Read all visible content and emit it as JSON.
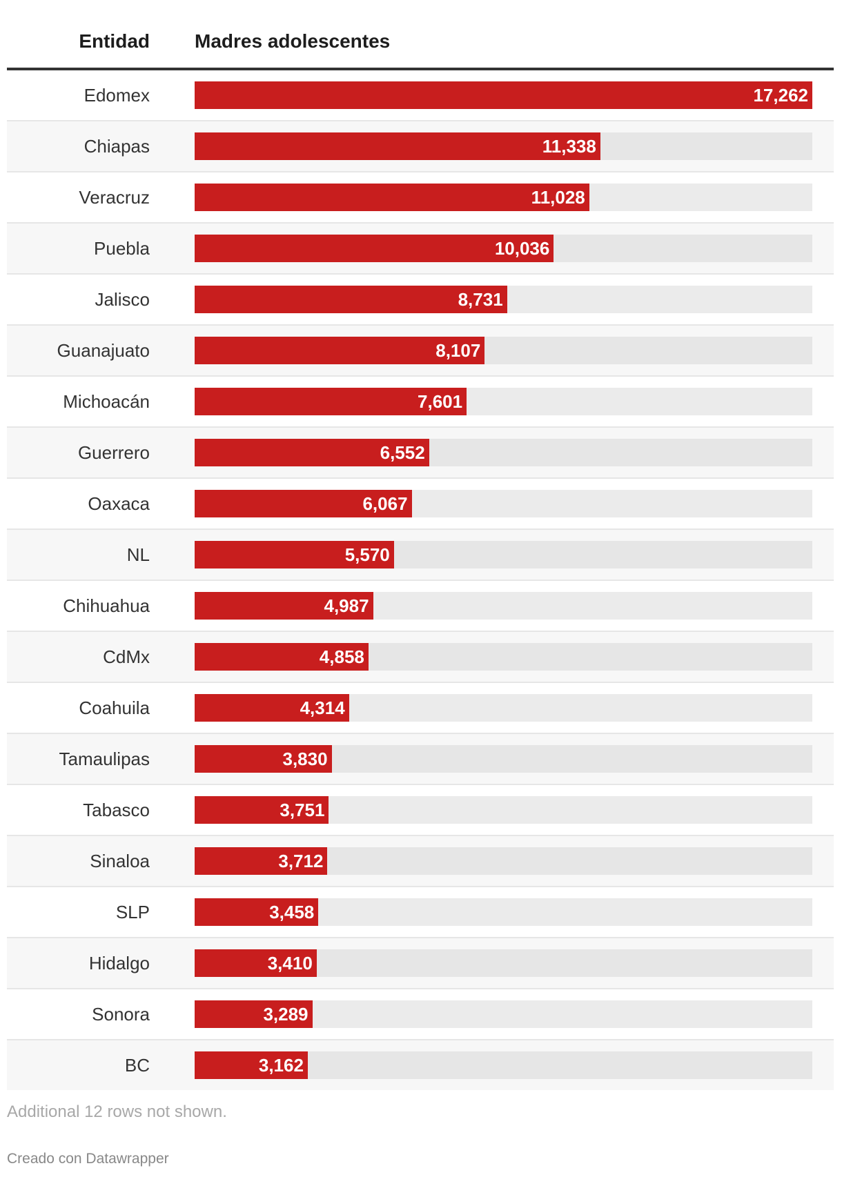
{
  "chart_data": {
    "type": "bar",
    "orientation": "horizontal",
    "columns": [
      "Entidad",
      "Madres adolescentes"
    ],
    "categories": [
      "Edomex",
      "Chiapas",
      "Veracruz",
      "Puebla",
      "Jalisco",
      "Guanajuato",
      "Michoacán",
      "Guerrero",
      "Oaxaca",
      "NL",
      "Chihuahua",
      "CdMx",
      "Coahuila",
      "Tamaulipas",
      "Tabasco",
      "Sinaloa",
      "SLP",
      "Hidalgo",
      "Sonora",
      "BC"
    ],
    "values": [
      17262,
      11338,
      11028,
      10036,
      8731,
      8107,
      7601,
      6552,
      6067,
      5570,
      4987,
      4858,
      4314,
      3830,
      3751,
      3712,
      3458,
      3410,
      3289,
      3162
    ],
    "labels": [
      "17,262",
      "11,338",
      "11,028",
      "10,036",
      "8,731",
      "8,107",
      "7,601",
      "6,552",
      "6,067",
      "5,570",
      "4,987",
      "4,858",
      "4,314",
      "3,830",
      "3,751",
      "3,712",
      "3,458",
      "3,410",
      "3,289",
      "3,162"
    ],
    "xlim": [
      0,
      17262
    ],
    "bar_color": "#c81e1e",
    "track_color": "#e6e6e6"
  },
  "footer": {
    "note": "Additional 12 rows not shown.",
    "credit": "Creado con Datawrapper"
  }
}
